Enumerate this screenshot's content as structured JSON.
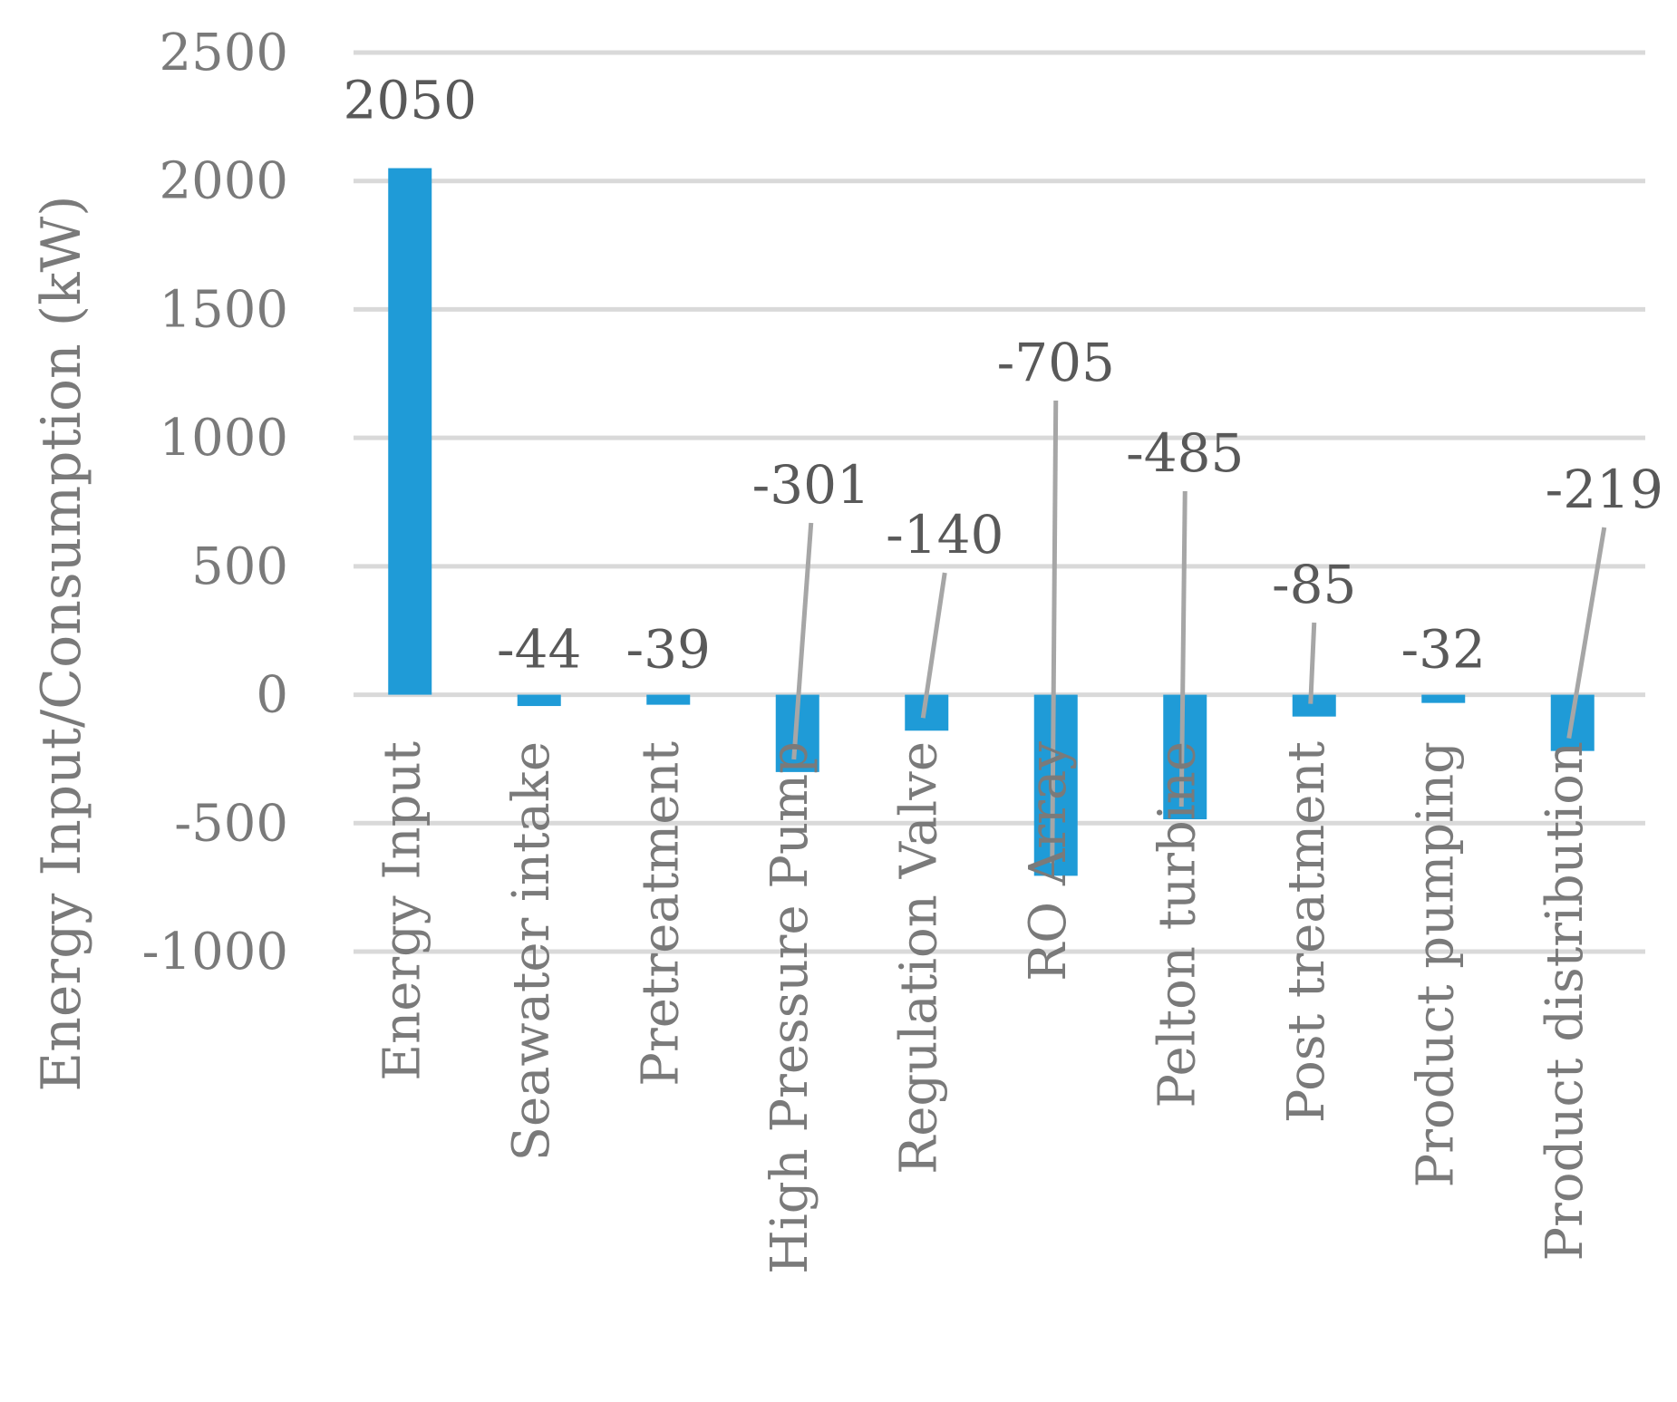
{
  "chart_data": {
    "type": "bar",
    "title": "",
    "xlabel": "",
    "ylabel": "Energy Input/Consumption (kW)",
    "ylim": [
      -1000,
      2500
    ],
    "yticks": [
      -1000,
      -500,
      0,
      500,
      1000,
      1500,
      2000,
      2500
    ],
    "grid": true,
    "legend": "none",
    "bar_color": "#1f9bd7",
    "categories": [
      "Energy Input",
      "Seawater intake",
      "Pretreatment",
      "High Pressure Pump",
      "Regulation Valve",
      "RO Array",
      "Pelton turbine",
      "Post treatment",
      "Product pumping",
      "Product distribution"
    ],
    "values": [
      2050,
      -44,
      -39,
      -301,
      -140,
      -705,
      -485,
      -85,
      -32,
      -219
    ],
    "data_labels": [
      "2050",
      "-44",
      "-39",
      "-301",
      "-140",
      "-705",
      "-485",
      "-85",
      "-32",
      "-219"
    ]
  }
}
